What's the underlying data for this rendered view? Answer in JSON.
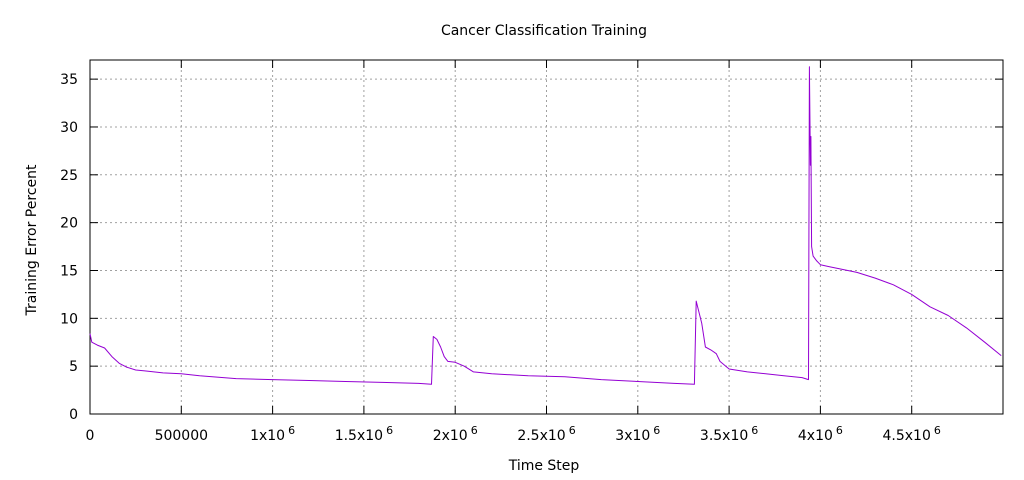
{
  "chart_data": {
    "type": "line",
    "title": "Cancer Classification Training",
    "xlabel": "Time Step",
    "ylabel": "Training Error Percent",
    "xlim": [
      0,
      5000000
    ],
    "ylim": [
      0,
      37
    ],
    "grid": true,
    "legend": "none",
    "x_ticks": [
      {
        "value": 0,
        "label": "0",
        "exp": ""
      },
      {
        "value": 500000,
        "label": "500000",
        "exp": ""
      },
      {
        "value": 1000000,
        "label": "1x10",
        "exp": "6"
      },
      {
        "value": 1500000,
        "label": "1.5x10",
        "exp": "6"
      },
      {
        "value": 2000000,
        "label": "2x10",
        "exp": "6"
      },
      {
        "value": 2500000,
        "label": "2.5x10",
        "exp": "6"
      },
      {
        "value": 3000000,
        "label": "3x10",
        "exp": "6"
      },
      {
        "value": 3500000,
        "label": "3.5x10",
        "exp": "6"
      },
      {
        "value": 4000000,
        "label": "4x10",
        "exp": "6"
      },
      {
        "value": 4500000,
        "label": "4.5x10",
        "exp": "6"
      }
    ],
    "y_ticks": [
      {
        "value": 0,
        "label": "0"
      },
      {
        "value": 5,
        "label": "5"
      },
      {
        "value": 10,
        "label": "10"
      },
      {
        "value": 15,
        "label": "15"
      },
      {
        "value": 20,
        "label": "20"
      },
      {
        "value": 25,
        "label": "25"
      },
      {
        "value": 30,
        "label": "30"
      },
      {
        "value": 35,
        "label": "35"
      }
    ],
    "series": [
      {
        "color": "#9400d3",
        "x": [
          0,
          10000,
          40000,
          80000,
          120000,
          160000,
          200000,
          250000,
          300000,
          400000,
          500000,
          600000,
          800000,
          1000000,
          1200000,
          1400000,
          1600000,
          1800000,
          1870000,
          1880000,
          1900000,
          1920000,
          1940000,
          1960000,
          2000000,
          2050000,
          2100000,
          2200000,
          2400000,
          2600000,
          2800000,
          3000000,
          3200000,
          3310000,
          3320000,
          3330000,
          3350000,
          3370000,
          3400000,
          3430000,
          3450000,
          3500000,
          3600000,
          3700000,
          3800000,
          3900000,
          3935000,
          3940000,
          3945000,
          3948000,
          3952000,
          3960000,
          3980000,
          4000000,
          4050000,
          4100000,
          4200000,
          4300000,
          4400000,
          4500000,
          4600000,
          4700000,
          4800000,
          4900000,
          4990000
        ],
        "y": [
          8.4,
          7.5,
          7.2,
          6.9,
          6.0,
          5.3,
          4.9,
          4.6,
          4.5,
          4.3,
          4.2,
          4.0,
          3.7,
          3.6,
          3.5,
          3.4,
          3.3,
          3.2,
          3.1,
          8.1,
          7.8,
          7.0,
          6.0,
          5.5,
          5.4,
          5.0,
          4.4,
          4.2,
          4.0,
          3.9,
          3.6,
          3.4,
          3.2,
          3.1,
          11.8,
          11.0,
          9.5,
          7.0,
          6.7,
          6.3,
          5.5,
          4.7,
          4.4,
          4.2,
          4.0,
          3.8,
          3.6,
          36.3,
          26.0,
          29.0,
          17.5,
          16.5,
          16.0,
          15.6,
          15.4,
          15.2,
          14.8,
          14.2,
          13.5,
          12.5,
          11.2,
          10.3,
          9.0,
          7.5,
          6.1
        ]
      }
    ]
  }
}
